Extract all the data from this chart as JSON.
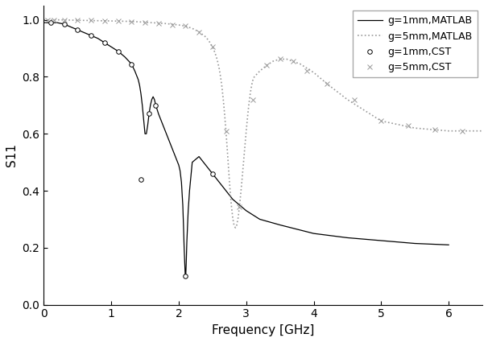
{
  "xlabel": "Frequency [GHz]",
  "ylabel": "S11",
  "xlim": [
    0,
    6.5
  ],
  "ylim": [
    0.0,
    1.05
  ],
  "yticks": [
    0.0,
    0.2,
    0.4,
    0.6,
    0.8,
    1.0
  ],
  "xticks": [
    0,
    1,
    2,
    3,
    4,
    5,
    6
  ],
  "legend_labels": [
    "g=1mm,MATLAB",
    "g=5mm,MATLAB",
    "g=1mm,CST",
    "g=5mm,CST"
  ],
  "line_color_1mm": "#000000",
  "line_color_5mm": "#999999",
  "figsize": [
    6.06,
    4.25
  ],
  "dpi": 100,
  "g1mm_f": [
    0.0,
    0.05,
    0.1,
    0.2,
    0.3,
    0.4,
    0.5,
    0.6,
    0.7,
    0.8,
    0.9,
    1.0,
    1.1,
    1.2,
    1.3,
    1.35,
    1.4,
    1.42,
    1.44,
    1.46,
    1.48,
    1.5,
    1.52,
    1.54,
    1.56,
    1.58,
    1.6,
    1.62,
    1.64,
    1.66,
    1.7,
    1.75,
    1.8,
    1.85,
    1.9,
    1.95,
    2.0,
    2.02,
    2.04,
    2.06,
    2.07,
    2.08,
    2.09,
    2.095,
    2.1,
    2.105,
    2.11,
    2.12,
    2.14,
    2.16,
    2.2,
    2.3,
    2.4,
    2.5,
    2.6,
    2.7,
    2.8,
    3.0,
    3.2,
    3.5,
    4.0,
    4.5,
    5.0,
    5.5,
    6.0
  ],
  "g1mm_y": [
    0.99,
    0.99,
    0.99,
    0.99,
    0.985,
    0.975,
    0.965,
    0.955,
    0.945,
    0.935,
    0.92,
    0.905,
    0.89,
    0.87,
    0.845,
    0.82,
    0.79,
    0.77,
    0.74,
    0.7,
    0.65,
    0.6,
    0.6,
    0.63,
    0.67,
    0.7,
    0.72,
    0.73,
    0.72,
    0.7,
    0.67,
    0.64,
    0.61,
    0.58,
    0.55,
    0.52,
    0.49,
    0.47,
    0.43,
    0.35,
    0.28,
    0.2,
    0.14,
    0.11,
    0.1,
    0.11,
    0.14,
    0.22,
    0.33,
    0.4,
    0.5,
    0.52,
    0.49,
    0.46,
    0.43,
    0.4,
    0.37,
    0.33,
    0.3,
    0.28,
    0.25,
    0.235,
    0.225,
    0.215,
    0.21
  ],
  "g5mm_f": [
    0.0,
    0.1,
    0.2,
    0.4,
    0.6,
    0.8,
    1.0,
    1.2,
    1.4,
    1.6,
    1.8,
    2.0,
    2.1,
    2.2,
    2.3,
    2.4,
    2.45,
    2.5,
    2.52,
    2.54,
    2.56,
    2.58,
    2.6,
    2.62,
    2.64,
    2.66,
    2.68,
    2.7,
    2.72,
    2.74,
    2.76,
    2.78,
    2.8,
    2.82,
    2.84,
    2.86,
    2.88,
    2.9,
    2.92,
    2.94,
    2.96,
    2.98,
    3.0,
    3.02,
    3.04,
    3.06,
    3.08,
    3.1,
    3.12,
    3.2,
    3.3,
    3.4,
    3.5,
    3.6,
    3.8,
    4.0,
    4.2,
    4.5,
    5.0,
    5.5,
    6.0,
    6.5
  ],
  "g5mm_y": [
    1.0,
    1.0,
    1.0,
    0.999,
    0.998,
    0.997,
    0.996,
    0.995,
    0.993,
    0.99,
    0.987,
    0.982,
    0.978,
    0.97,
    0.958,
    0.94,
    0.925,
    0.905,
    0.895,
    0.882,
    0.868,
    0.85,
    0.828,
    0.8,
    0.765,
    0.72,
    0.668,
    0.608,
    0.542,
    0.472,
    0.404,
    0.348,
    0.305,
    0.278,
    0.27,
    0.28,
    0.305,
    0.345,
    0.393,
    0.445,
    0.5,
    0.555,
    0.61,
    0.66,
    0.705,
    0.742,
    0.77,
    0.79,
    0.8,
    0.82,
    0.84,
    0.855,
    0.862,
    0.862,
    0.845,
    0.815,
    0.775,
    0.72,
    0.645,
    0.62,
    0.61,
    0.61
  ],
  "cst_1mm_f": [
    0.1,
    0.3,
    0.5,
    0.7,
    0.9,
    1.1,
    1.3,
    1.44,
    1.56,
    1.65,
    2.1,
    2.5
  ],
  "cst_1mm_y": [
    0.99,
    0.985,
    0.965,
    0.945,
    0.92,
    0.89,
    0.845,
    0.44,
    0.67,
    0.7,
    0.1,
    0.46
  ],
  "cst_5mm_f": [
    0.05,
    0.15,
    0.3,
    0.5,
    0.7,
    0.9,
    1.1,
    1.3,
    1.5,
    1.7,
    1.9,
    2.1,
    2.3,
    2.5,
    2.7,
    2.9,
    3.1,
    3.3,
    3.5,
    3.7,
    3.9,
    4.2,
    4.6,
    5.0,
    5.4,
    5.8,
    6.2
  ],
  "cst_5mm_y": [
    1.0,
    1.0,
    1.0,
    0.999,
    0.998,
    0.997,
    0.996,
    0.994,
    0.991,
    0.987,
    0.982,
    0.978,
    0.958,
    0.905,
    0.608,
    0.345,
    0.72,
    0.84,
    0.862,
    0.855,
    0.82,
    0.775,
    0.72,
    0.645,
    0.63,
    0.615,
    0.61
  ]
}
